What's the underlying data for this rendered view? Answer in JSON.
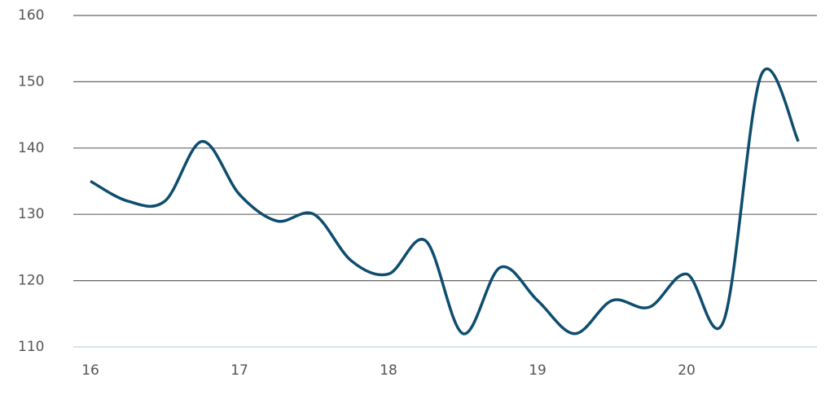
{
  "chart_data": {
    "type": "line",
    "x": [
      16,
      16.25,
      16.5,
      16.75,
      17,
      17.25,
      17.5,
      17.75,
      18,
      18.25,
      18.5,
      18.75,
      19,
      19.25,
      19.5,
      19.75,
      20,
      20.25,
      20.5,
      20.75
    ],
    "series": [
      {
        "color": "#0e4d6e",
        "values": [
          135,
          132,
          132,
          141,
          133,
          129,
          130,
          123,
          121,
          126,
          112,
          122,
          117,
          112,
          117,
          116,
          121,
          114,
          151,
          141
        ]
      }
    ],
    "xlim": [
      15.885,
      20.874
    ],
    "xticks": [
      16,
      17,
      18,
      19,
      20
    ],
    "ylim": [
      110,
      160
    ],
    "yticks": [
      110,
      120,
      130,
      140,
      150,
      160
    ],
    "grid": true
  }
}
